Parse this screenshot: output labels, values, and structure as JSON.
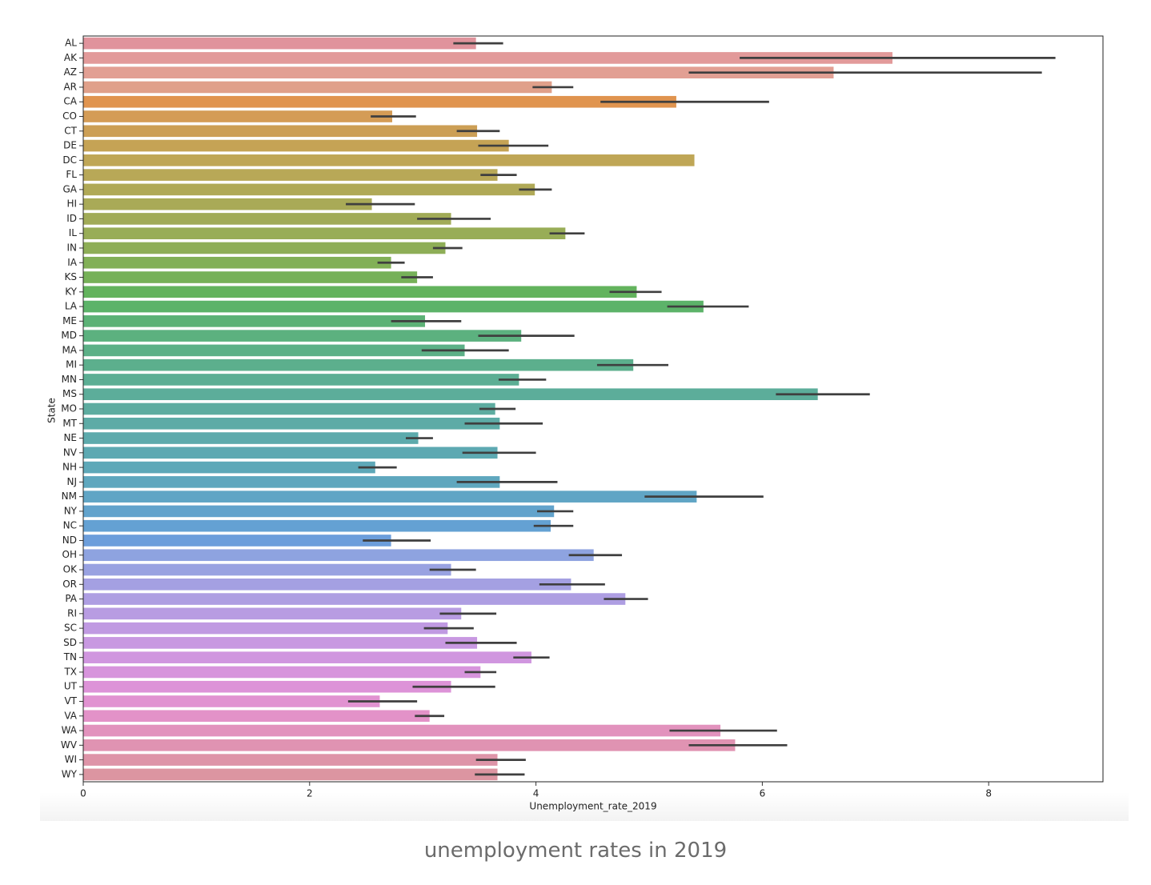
{
  "chart_data": {
    "type": "bar",
    "orientation": "horizontal",
    "xlabel": "Unemployment_rate_2019",
    "ylabel": "State",
    "caption": "unemployment rates in 2019",
    "categories": [
      "AL",
      "AK",
      "AZ",
      "AR",
      "CA",
      "CO",
      "CT",
      "DE",
      "DC",
      "FL",
      "GA",
      "HI",
      "ID",
      "IL",
      "IN",
      "IA",
      "KS",
      "KY",
      "LA",
      "ME",
      "MD",
      "MA",
      "MI",
      "MN",
      "MS",
      "MO",
      "MT",
      "NE",
      "NV",
      "NH",
      "NJ",
      "NM",
      "NY",
      "NC",
      "ND",
      "OH",
      "OK",
      "OR",
      "PA",
      "RI",
      "SC",
      "SD",
      "TN",
      "TX",
      "UT",
      "VT",
      "VA",
      "WA",
      "WV",
      "WI",
      "WY"
    ],
    "values": [
      3.47,
      7.15,
      6.63,
      4.14,
      5.24,
      2.73,
      3.48,
      3.76,
      5.4,
      3.66,
      3.99,
      2.55,
      3.25,
      4.26,
      3.2,
      2.72,
      2.95,
      4.89,
      5.48,
      3.02,
      3.87,
      3.37,
      4.86,
      3.85,
      6.49,
      3.64,
      3.68,
      2.96,
      3.66,
      2.58,
      3.68,
      5.42,
      4.16,
      4.13,
      2.72,
      4.51,
      3.25,
      4.31,
      4.79,
      3.34,
      3.22,
      3.48,
      3.96,
      3.51,
      3.25,
      2.62,
      3.06,
      5.63,
      5.76,
      3.66,
      3.66
    ],
    "ci_low": [
      3.27,
      5.8,
      5.35,
      3.97,
      4.57,
      2.54,
      3.3,
      3.49,
      null,
      3.51,
      3.85,
      2.32,
      2.95,
      4.12,
      3.09,
      2.6,
      2.81,
      4.65,
      5.16,
      2.72,
      3.49,
      2.99,
      4.54,
      3.67,
      6.12,
      3.5,
      3.37,
      2.85,
      3.35,
      2.43,
      3.3,
      4.96,
      4.01,
      3.98,
      2.47,
      4.29,
      3.06,
      4.03,
      4.6,
      3.15,
      3.01,
      3.2,
      3.8,
      3.37,
      2.91,
      2.34,
      2.93,
      5.18,
      5.35,
      3.47,
      3.46
    ],
    "ci_high": [
      3.71,
      8.59,
      8.47,
      4.33,
      6.06,
      2.94,
      3.68,
      4.11,
      null,
      3.83,
      4.14,
      2.93,
      3.6,
      4.43,
      3.35,
      2.84,
      3.09,
      5.11,
      5.88,
      3.34,
      4.34,
      3.76,
      5.17,
      4.09,
      6.95,
      3.82,
      4.06,
      3.09,
      4.0,
      2.77,
      4.19,
      6.01,
      4.33,
      4.33,
      3.07,
      4.76,
      3.47,
      4.61,
      4.99,
      3.65,
      3.45,
      3.83,
      4.12,
      3.65,
      3.64,
      2.95,
      3.19,
      6.13,
      6.22,
      3.91,
      3.9
    ],
    "colors": [
      "#e0939c",
      "#e29a9a",
      "#e29f93",
      "#e0a08a",
      "#e0944f",
      "#d49c56",
      "#cc9f55",
      "#c5a355",
      "#bfa656",
      "#b8a857",
      "#b0a957",
      "#a9aa57",
      "#a1ab57",
      "#98ad57",
      "#8eae57",
      "#82b057",
      "#76b158",
      "#63b35d",
      "#5cb369",
      "#5cb276",
      "#5cb17f",
      "#5cb087",
      "#5caf8d",
      "#5cae94",
      "#5cad9a",
      "#5daca0",
      "#5daba6",
      "#5daaac",
      "#5da9b2",
      "#5ea8b8",
      "#5fa7be",
      "#60a5c5",
      "#62a3cc",
      "#64a1d3",
      "#6c9edb",
      "#8ea3e0",
      "#99a2e1",
      "#a4a0e2",
      "#ae9ee2",
      "#b89ce2",
      "#c09ae2",
      "#c898e1",
      "#d096df",
      "#d794dc",
      "#dd93d8",
      "#e192d1",
      "#e392c8",
      "#e292bd",
      "#e093b2",
      "#de94a8",
      "#dc95a1"
    ],
    "errcolor": "#3f3f3f",
    "xlim": [
      0,
      9.01
    ],
    "xticks": [
      0,
      2,
      4,
      6,
      8
    ],
    "grid": false
  }
}
